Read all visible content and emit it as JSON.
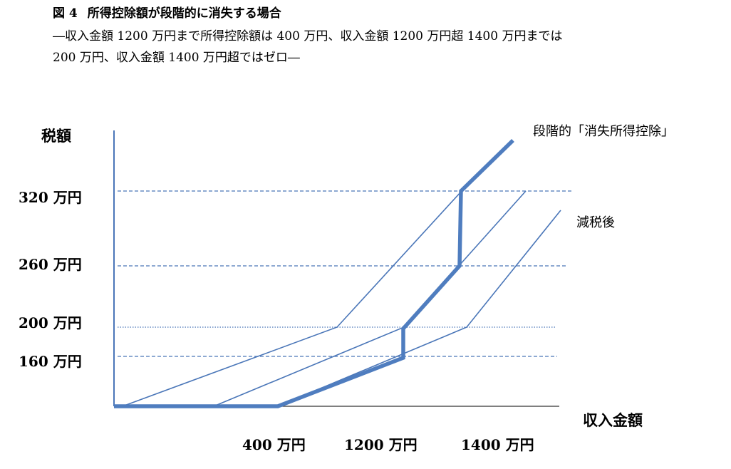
{
  "figure": {
    "number": "図 4",
    "title": "所得控除額が段階的に消失する場合",
    "subtitle_line1": "―収入金額 1200 万円まで所得控除額は 400 万円、収入金額 1200 万円超 1400 万円までは",
    "subtitle_line2": "200 万円、収入金額 1400 万円超ではゼロ―"
  },
  "chart_data": {
    "type": "diagram",
    "y_axis_label": "税額",
    "x_axis_label": "収入金額",
    "y_ticks": [
      "320 万円",
      "260 万円",
      "200 万円",
      "160 万円"
    ],
    "x_ticks": [
      "400 万円",
      "1200 万円",
      "1400 万円"
    ],
    "annotations": {
      "phaseout_line": "段階的「消失所得控除」",
      "after_tax": "減税後"
    },
    "colors": {
      "lines": "#4a76b8",
      "thick": "#4f7dbf"
    }
  }
}
